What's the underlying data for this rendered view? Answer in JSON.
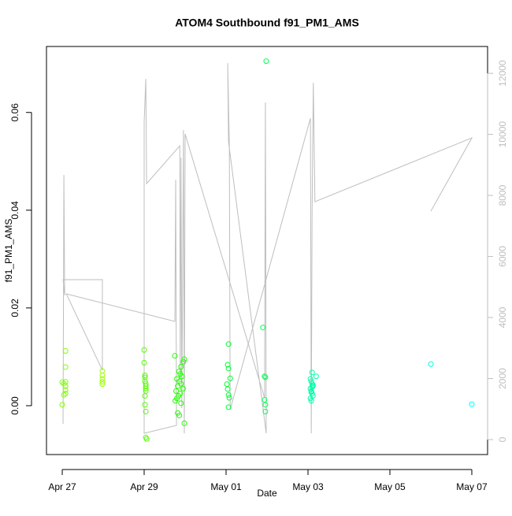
{
  "chart_data": {
    "type": "scatter",
    "title": "ATOM4 Southbound f91_PM1_AMS",
    "x_label": "Date",
    "y_label": "f91_PM1_AMS",
    "xlim": [
      -0.385,
      10.385
    ],
    "xticks": [
      {
        "value": 0,
        "label": "Apr 27"
      },
      {
        "value": 2,
        "label": "Apr 29"
      },
      {
        "value": 4,
        "label": "May 01"
      },
      {
        "value": 6,
        "label": "May 03"
      },
      {
        "value": 8,
        "label": "May 05"
      },
      {
        "value": 10,
        "label": "May 07"
      }
    ],
    "ylim": [
      -0.01,
      0.0735
    ],
    "yticks": [
      {
        "value": 0,
        "label": "0.00"
      },
      {
        "value": 0.02,
        "label": "0.02"
      },
      {
        "value": 0.04,
        "label": "0.04"
      },
      {
        "value": 0.06,
        "label": "0.06"
      }
    ],
    "y2lim": [
      -490,
      12880
    ],
    "y2ticks": [
      0,
      2000,
      4000,
      6000,
      8000,
      10000,
      12000
    ],
    "y2_color": "#bebebe",
    "series": [
      {
        "color": "#80ff00",
        "x": [
          0,
          0,
          0.04,
          0.04,
          0.08,
          0.08,
          0.08,
          0.08,
          0.08,
          0.08
        ],
        "values": [
          0.0048,
          0.0002,
          0.0022,
          0.0045,
          0.0112,
          0.0079,
          0.0049,
          0.004,
          0.0032,
          0.0025
        ]
      },
      {
        "color": "#99ff00",
        "x": [
          0.98,
          0.98,
          0.98,
          0.98,
          0.98
        ],
        "values": [
          0.0071,
          0.0062,
          0.0055,
          0.0049,
          0.0044
        ]
      },
      {
        "color": "#55ff00",
        "x": [
          2,
          2,
          2.02,
          2.02,
          2.02,
          2.04,
          2.04,
          2.04,
          2.04,
          2.02,
          2.02,
          2.04,
          2.04,
          2.06
        ],
        "values": [
          0.0114,
          0.0088,
          0.0062,
          0.0058,
          0.005,
          0.0045,
          0.004,
          0.0035,
          0.003,
          0.002,
          0.0002,
          -0.0012,
          -0.0065,
          -0.0068
        ]
      },
      {
        "color": "#22ff00",
        "x": [
          2.75,
          2.9,
          2.85,
          2.88,
          2.92,
          2.8,
          2.86,
          2.9,
          2.82,
          2.95,
          2.78,
          2.88,
          2.84,
          2.8,
          2.76,
          2.9,
          2.82,
          2.86,
          2.98,
          2.98,
          2.96
        ],
        "values": [
          0.0102,
          0.008,
          0.007,
          0.0065,
          0.006,
          0.0055,
          0.005,
          0.0045,
          0.004,
          0.0035,
          0.003,
          0.0025,
          0.002,
          0.0015,
          0.001,
          0.0005,
          -0.0015,
          -0.002,
          -0.0036,
          0.0095,
          0.009
        ]
      },
      {
        "color": "#00ff33",
        "x": [
          4.06,
          4.04,
          4.06,
          4.1,
          4.02,
          4.04,
          4.06,
          4.08,
          4.06
        ],
        "values": [
          0.0126,
          0.0084,
          0.0076,
          0.0056,
          0.0044,
          0.0034,
          0.0022,
          0.0016,
          -0.0003
        ]
      },
      {
        "color": "#00ff55",
        "x": [
          4.98,
          4.9,
          4.94,
          4.96,
          4.94,
          4.96,
          4.96
        ],
        "values": [
          0.0705,
          0.016,
          0.006,
          0.0058,
          0.0012,
          0.0002,
          -0.0012
        ]
      },
      {
        "color": "#00ffaa",
        "x": [
          6.1,
          6.2,
          6.06,
          6.08,
          6.1,
          6.12,
          6.06,
          6.08,
          6.1,
          6.12,
          6.06,
          6.08,
          6.1,
          6.12,
          6.08
        ],
        "values": [
          0.0068,
          0.006,
          0.0055,
          0.005,
          0.0045,
          0.004,
          0.0035,
          0.003,
          0.0025,
          0.002,
          0.0015,
          0.001,
          0.0038,
          0.0042,
          0.0028
        ]
      },
      {
        "color": "#00ffdd",
        "x": [
          9
        ],
        "values": [
          0.0085
        ]
      },
      {
        "color": "#00ffff",
        "x": [
          10
        ],
        "values": [
          0.0003
        ]
      }
    ],
    "line": {
      "axis": "y2",
      "color": "#bebebe",
      "x": [
        0.02,
        0.04,
        0.06,
        0.02,
        0.98,
        0.98,
        0.1,
        2.75,
        2.77,
        2.79,
        2.0,
        2.0,
        2.04,
        2.06,
        2.87,
        2.88,
        2.9,
        2.92,
        2.96,
        2.98,
        3.0,
        4.94,
        4.96,
        4.98,
        4.06,
        4.04,
        4.08,
        4.1,
        6.06,
        6.08,
        6.1,
        6.13,
        6.17,
        10.0,
        9.0
      ],
      "values": [
        516,
        8671,
        4723,
        5239,
        5239,
        2271,
        4774,
        3871,
        8516,
        465,
        206,
        10400,
        11819,
        8387,
        9626,
        2013,
        9239,
        1032,
        10142,
        206,
        10013,
        1368,
        11045,
        206,
        9755,
        12335,
        9626,
        981,
        10529,
        206,
        7432,
        11690,
        7794,
        9884,
        7484
      ]
    }
  }
}
